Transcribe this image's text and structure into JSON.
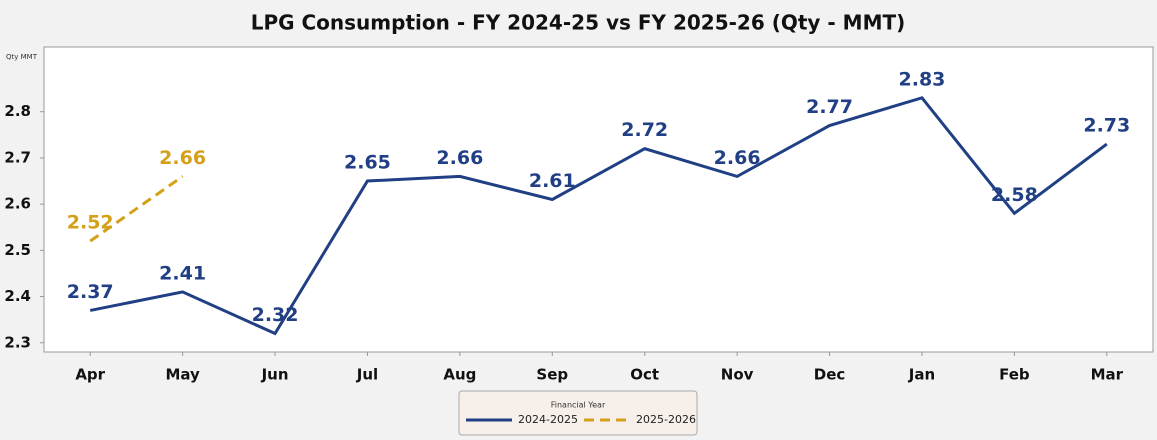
{
  "chart_data": {
    "type": "line",
    "title": "LPG Consumption - FY 2024-25 vs FY 2025-26 (Qty - MMT)",
    "y_axis_label": "Qty MMT",
    "legend_title": "Financial Year",
    "categories": [
      "Apr",
      "May",
      "Jun",
      "Jul",
      "Aug",
      "Sep",
      "Oct",
      "Nov",
      "Dec",
      "Jan",
      "Feb",
      "Mar"
    ],
    "series": [
      {
        "name": "2024-2025",
        "color": "#203f84",
        "dash": false,
        "values": [
          2.37,
          2.41,
          2.32,
          2.65,
          2.66,
          2.61,
          2.72,
          2.66,
          2.77,
          2.83,
          2.58,
          2.73
        ]
      },
      {
        "name": "2025-2026",
        "color": "#d4a017",
        "dash": true,
        "values": [
          2.52,
          2.66,
          null,
          null,
          null,
          null,
          null,
          null,
          null,
          null,
          null,
          null
        ]
      }
    ],
    "ylim": [
      2.28,
      2.94
    ],
    "yticks": [
      2.3,
      2.4,
      2.5,
      2.6,
      2.7,
      2.8
    ],
    "grid": false,
    "legend": "bottom"
  }
}
